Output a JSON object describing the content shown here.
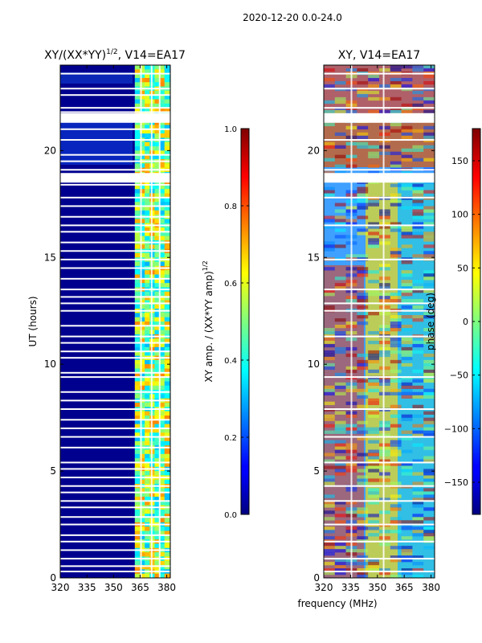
{
  "figure_title": "2020-12-20 0.0-24.0",
  "chart_data": [
    {
      "type": "heatmap",
      "title": "XY/(XX*YY)^{1/2}, V14=EA17",
      "title_main": "XY/(XX*YY)",
      "title_sup": "1/2",
      "title_tail": ", V14=EA17",
      "xlabel": "",
      "ylabel": "UT (hours)",
      "xlim": [
        320,
        382
      ],
      "ylim": [
        0,
        24
      ],
      "xticks": [
        320,
        335,
        350,
        365,
        380
      ],
      "yticks": [
        0,
        5,
        10,
        15,
        20
      ],
      "colormap": "jet",
      "colorbar": {
        "label": "XY amp. / (XX*YY amp)^{1/2}",
        "label_main": "XY amp. / (XX*YY amp)",
        "label_sup": "1/2",
        "range": [
          0.0,
          1.0
        ],
        "ticks": [
          "0.0",
          "0.2",
          "0.4",
          "0.6",
          "0.8",
          "1.0"
        ],
        "tick_values": [
          0.0,
          0.2,
          0.4,
          0.6,
          0.8,
          1.0
        ]
      },
      "flagged_ut_hours": [
        0.3,
        0.55,
        0.9,
        1.3,
        1.7,
        2.0,
        2.5,
        2.85,
        3.3,
        3.6,
        4.0,
        4.3,
        4.7,
        5.1,
        5.4,
        6.1,
        6.6,
        7.0,
        7.4,
        7.9,
        8.3,
        8.7,
        9.4,
        9.6,
        10.3,
        10.6,
        11.0,
        11.3,
        11.8,
        12.5,
        12.85,
        13.15,
        13.5,
        14.0,
        14.5,
        14.9,
        15.3,
        15.7,
        16.2,
        16.5,
        16.9,
        17.4,
        17.8,
        18.4,
        19.1,
        19.5,
        19.8,
        20.5,
        21.0,
        21.8,
        22.0,
        22.6,
        22.9,
        23.6
      ],
      "flagged_ut_bands": [
        [
          18.5,
          18.95
        ],
        [
          21.3,
          21.75
        ]
      ],
      "flagged_freq_mhz": [
        365.5,
        371.5,
        376.0
      ]
    },
    {
      "type": "heatmap",
      "title": "XY, V14=EA17",
      "xlabel": "frequency (MHz)",
      "ylabel": "",
      "xlim": [
        320,
        382
      ],
      "ylim": [
        0,
        24
      ],
      "xticks": [
        320,
        335,
        350,
        365,
        380
      ],
      "yticks": [
        0,
        5,
        10,
        15,
        20
      ],
      "colormap": "jet",
      "colorbar": {
        "label": "phase (deg)",
        "range": [
          -180,
          180
        ],
        "ticks": [
          "−150",
          "−100",
          "−50",
          "0",
          "50",
          "100",
          "150"
        ],
        "tick_values": [
          -150,
          -100,
          -50,
          0,
          50,
          100,
          150
        ]
      },
      "flagged_ut_hours": [
        0.3,
        0.9,
        1.7,
        2.5,
        3.6,
        4.3,
        5.4,
        6.6,
        7.9,
        9.4,
        11.3,
        12.5,
        12.85,
        13.5,
        14.9,
        16.5,
        17.8,
        19.1,
        20.5,
        22.0,
        22.9,
        23.6
      ],
      "flagged_ut_bands": [
        [
          18.5,
          18.95
        ],
        [
          21.3,
          21.75
        ]
      ],
      "flagged_freq_mhz": [
        335.5,
        353.5
      ]
    }
  ]
}
